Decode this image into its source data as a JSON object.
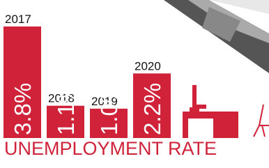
{
  "chart_data": {
    "type": "bar",
    "title": "UNEMPLOYMENT RATE",
    "categories": [
      "2017",
      "2018",
      "2019",
      "2020"
    ],
    "values": [
      3.8,
      1.1,
      1.0,
      2.2
    ],
    "value_labels": [
      "3.8%",
      "1.1%",
      "1.0%",
      "2.2%"
    ],
    "color": "#d0233a"
  }
}
